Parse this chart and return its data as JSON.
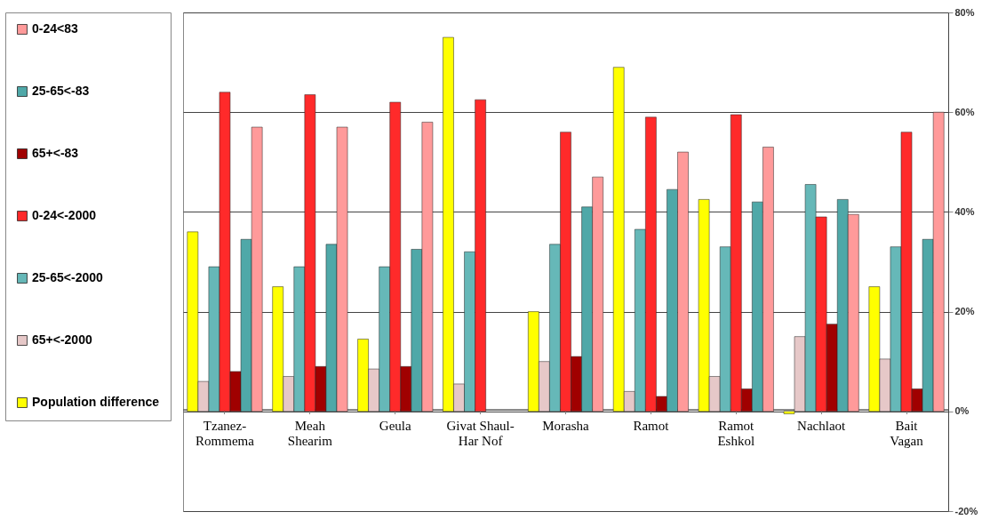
{
  "chart_data": {
    "type": "bar",
    "categories": [
      "Tzanez-Rommema",
      "Meah Shearim",
      "Geula",
      "Givat Shaul-Har Nof",
      "Morasha",
      "Ramot",
      "Ramot Eshkol",
      "Nachlaot",
      "Bait Vagan"
    ],
    "series": [
      {
        "name": "Population difference",
        "color": "#ffff00",
        "values": [
          36,
          25,
          14.5,
          75,
          20,
          69,
          42.5,
          -0.5,
          25
        ]
      },
      {
        "name": "65+<-2000",
        "color": "#e6c8c8",
        "values": [
          6,
          7,
          8.5,
          5.5,
          10,
          4,
          7,
          15,
          10.5
        ]
      },
      {
        "name": "25-65<-2000",
        "color": "#66b8b8",
        "values": [
          29,
          29,
          29,
          32,
          33.5,
          36.5,
          33,
          45.5,
          33
        ]
      },
      {
        "name": "0-24<-2000",
        "color": "#ff2a2a",
        "values": [
          64,
          63.5,
          62,
          62.5,
          56,
          59,
          59.5,
          39,
          56
        ]
      },
      {
        "name": "65+<-83",
        "color": "#a00000",
        "values": [
          8,
          9,
          9,
          null,
          11,
          3,
          4.5,
          17.5,
          4.5
        ]
      },
      {
        "name": "25-65<-83",
        "color": "#4fa8a8",
        "values": [
          34.5,
          33.5,
          32.5,
          null,
          41,
          44.5,
          42,
          42.5,
          34.5
        ]
      },
      {
        "name": "0-24<83",
        "color": "#ff9a9a",
        "values": [
          57,
          57,
          58,
          null,
          47,
          52,
          53,
          39.5,
          60
        ]
      }
    ],
    "ylim": [
      -20,
      80
    ],
    "yticks": [
      {
        "value": -20,
        "label": "-20%"
      },
      {
        "value": 0,
        "label": "0%"
      },
      {
        "value": 20,
        "label": "20%"
      },
      {
        "value": 40,
        "label": "40%"
      },
      {
        "value": 60,
        "label": "60%"
      },
      {
        "value": 80,
        "label": "80%"
      }
    ],
    "grid": "y",
    "legend": "left"
  }
}
